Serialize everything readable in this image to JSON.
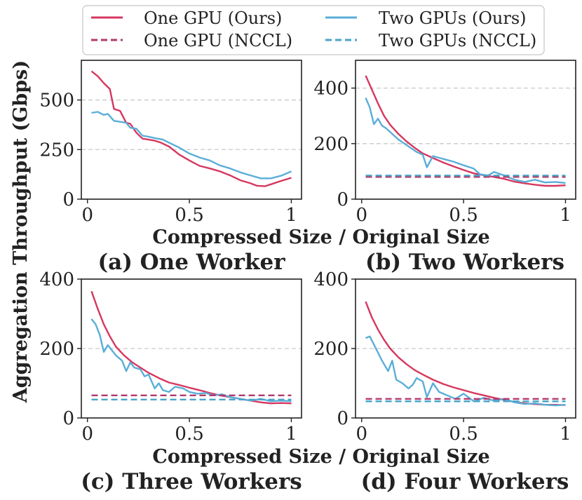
{
  "colors": {
    "ours_one": "#d6375f",
    "ours_two": "#5aaed8",
    "nccl_one": "#b03a6c",
    "nccl_two": "#4aa3c8",
    "grid": "#c9c9c9"
  },
  "legend": [
    {
      "label": "One GPU (Ours)",
      "style": "solid",
      "color_key": "ours_one"
    },
    {
      "label": "Two GPUs (Ours)",
      "style": "solid",
      "color_key": "ours_two"
    },
    {
      "label": "One GPU (NCCL)",
      "style": "dashed",
      "color_key": "nccl_one"
    },
    {
      "label": "Two GPUs (NCCL)",
      "style": "dashed",
      "color_key": "nccl_two"
    }
  ],
  "ylabel": "Aggregation Throughput (Gbps)",
  "xlabel": "Compressed Size / Original Size",
  "chart_data": [
    {
      "type": "line",
      "title": "(a) One Worker",
      "xlim": [
        -0.03,
        1.05
      ],
      "ylim": [
        0,
        700
      ],
      "xticks": [
        0,
        0.5,
        1
      ],
      "xtick_labels": [
        "0",
        "0.5",
        "1"
      ],
      "yticks": [
        0,
        250,
        500
      ],
      "ytick_labels": [
        "0",
        "250",
        "500"
      ],
      "series": [
        {
          "name": "One GPU (Ours)",
          "x": [
            0.02,
            0.05,
            0.08,
            0.11,
            0.13,
            0.16,
            0.19,
            0.21,
            0.24,
            0.27,
            0.3,
            0.33,
            0.36,
            0.4,
            0.45,
            0.5,
            0.55,
            0.6,
            0.65,
            0.7,
            0.75,
            0.8,
            0.83,
            0.87,
            0.9,
            0.95,
            1.0
          ],
          "y": [
            645,
            620,
            585,
            555,
            455,
            445,
            385,
            380,
            335,
            305,
            300,
            295,
            285,
            265,
            225,
            195,
            168,
            155,
            140,
            120,
            95,
            80,
            68,
            65,
            75,
            92,
            108
          ]
        },
        {
          "name": "Two GPUs (Ours)",
          "x": [
            0.02,
            0.05,
            0.08,
            0.1,
            0.13,
            0.16,
            0.19,
            0.21,
            0.24,
            0.27,
            0.3,
            0.33,
            0.37,
            0.4,
            0.45,
            0.5,
            0.55,
            0.6,
            0.65,
            0.7,
            0.75,
            0.8,
            0.85,
            0.9,
            0.95,
            1.0
          ],
          "y": [
            435,
            440,
            425,
            430,
            395,
            390,
            385,
            360,
            355,
            320,
            315,
            308,
            300,
            285,
            260,
            230,
            210,
            195,
            170,
            155,
            135,
            120,
            105,
            105,
            118,
            140
          ]
        },
        {
          "name": "One GPU (NCCL)",
          "constant": true,
          "y": []
        },
        {
          "name": "Two GPUs (NCCL)",
          "constant": true,
          "y": []
        }
      ]
    },
    {
      "type": "line",
      "title": "(b) Two Workers",
      "xlim": [
        -0.03,
        1.05
      ],
      "ylim": [
        0,
        500
      ],
      "xticks": [
        0,
        0.5,
        1
      ],
      "xtick_labels": [
        "0",
        "0.5",
        "1"
      ],
      "yticks": [
        0,
        200,
        400
      ],
      "ytick_labels": [
        "0",
        "200",
        "400"
      ],
      "series": [
        {
          "name": "One GPU (Ours)",
          "x": [
            0.02,
            0.05,
            0.08,
            0.11,
            0.14,
            0.18,
            0.22,
            0.26,
            0.3,
            0.35,
            0.4,
            0.45,
            0.5,
            0.55,
            0.6,
            0.65,
            0.7,
            0.75,
            0.8,
            0.85,
            0.9,
            0.95,
            1.0
          ],
          "y": [
            445,
            395,
            345,
            300,
            268,
            235,
            208,
            185,
            165,
            148,
            132,
            118,
            105,
            93,
            86,
            80,
            73,
            63,
            57,
            52,
            48,
            48,
            50
          ]
        },
        {
          "name": "Two GPUs (Ours)",
          "x": [
            0.02,
            0.04,
            0.06,
            0.08,
            0.1,
            0.12,
            0.15,
            0.18,
            0.22,
            0.27,
            0.3,
            0.32,
            0.35,
            0.4,
            0.45,
            0.5,
            0.55,
            0.58,
            0.62,
            0.65,
            0.7,
            0.75,
            0.8,
            0.85,
            0.9,
            0.95,
            1.0
          ],
          "y": [
            365,
            330,
            270,
            290,
            265,
            255,
            235,
            215,
            195,
            170,
            160,
            115,
            155,
            145,
            135,
            122,
            110,
            90,
            85,
            98,
            85,
            70,
            62,
            70,
            60,
            62,
            58
          ]
        },
        {
          "name": "One GPU (NCCL)",
          "constant": true,
          "y": [
            80
          ]
        },
        {
          "name": "Two GPUs (NCCL)",
          "constant": true,
          "y": [
            85
          ]
        }
      ]
    },
    {
      "type": "line",
      "title": "(c) Three Workers",
      "xlim": [
        -0.03,
        1.05
      ],
      "ylim": [
        0,
        400
      ],
      "xticks": [
        0,
        0.5,
        1
      ],
      "xtick_labels": [
        "0",
        "0.5",
        "1"
      ],
      "yticks": [
        0,
        200,
        400
      ],
      "ytick_labels": [
        "0",
        "200",
        "400"
      ],
      "series": [
        {
          "name": "One GPU (Ours)",
          "x": [
            0.02,
            0.05,
            0.08,
            0.11,
            0.14,
            0.18,
            0.22,
            0.26,
            0.3,
            0.35,
            0.4,
            0.45,
            0.5,
            0.55,
            0.6,
            0.65,
            0.7,
            0.75,
            0.8,
            0.85,
            0.9,
            0.95,
            1.0
          ],
          "y": [
            365,
            315,
            270,
            235,
            205,
            180,
            160,
            145,
            130,
            115,
            102,
            95,
            87,
            80,
            72,
            65,
            60,
            55,
            50,
            45,
            42,
            43,
            42
          ]
        },
        {
          "name": "Two GPUs (Ours)",
          "x": [
            0.02,
            0.04,
            0.06,
            0.08,
            0.1,
            0.12,
            0.14,
            0.17,
            0.19,
            0.21,
            0.23,
            0.26,
            0.28,
            0.3,
            0.33,
            0.35,
            0.37,
            0.4,
            0.43,
            0.47,
            0.5,
            0.54,
            0.58,
            0.62,
            0.66,
            0.7,
            0.75,
            0.8,
            0.85,
            0.9,
            0.95,
            1.0
          ],
          "y": [
            285,
            270,
            240,
            190,
            210,
            195,
            180,
            165,
            135,
            160,
            145,
            140,
            120,
            125,
            85,
            100,
            80,
            75,
            90,
            85,
            75,
            70,
            72,
            65,
            68,
            60,
            55,
            50,
            55,
            48,
            50,
            48
          ]
        },
        {
          "name": "One GPU (NCCL)",
          "constant": true,
          "y": [
            65
          ]
        },
        {
          "name": "Two GPUs (NCCL)",
          "constant": true,
          "y": [
            53
          ]
        }
      ]
    },
    {
      "type": "line",
      "title": "(d) Four Workers",
      "xlim": [
        -0.03,
        1.05
      ],
      "ylim": [
        0,
        400
      ],
      "xticks": [
        0,
        0.5,
        1
      ],
      "xtick_labels": [
        "0",
        "0.5",
        "1"
      ],
      "yticks": [
        0,
        200,
        400
      ],
      "ytick_labels": [
        "0",
        "200",
        "400"
      ],
      "series": [
        {
          "name": "One GPU (Ours)",
          "x": [
            0.02,
            0.05,
            0.08,
            0.11,
            0.14,
            0.18,
            0.22,
            0.26,
            0.3,
            0.35,
            0.4,
            0.45,
            0.5,
            0.55,
            0.6,
            0.65,
            0.7,
            0.75,
            0.8,
            0.85,
            0.9,
            0.95,
            1.0
          ],
          "y": [
            335,
            290,
            255,
            225,
            200,
            175,
            155,
            138,
            125,
            110,
            98,
            88,
            80,
            72,
            65,
            58,
            52,
            46,
            42,
            40,
            38,
            38,
            37
          ]
        },
        {
          "name": "Two GPUs (Ours)",
          "x": [
            0.02,
            0.04,
            0.07,
            0.1,
            0.13,
            0.15,
            0.17,
            0.2,
            0.23,
            0.25,
            0.27,
            0.3,
            0.32,
            0.35,
            0.38,
            0.42,
            0.46,
            0.5,
            0.55,
            0.6,
            0.65,
            0.7,
            0.75,
            0.8,
            0.85,
            0.9,
            0.95,
            1.0
          ],
          "y": [
            230,
            235,
            200,
            165,
            135,
            165,
            110,
            100,
            85,
            95,
            115,
            105,
            60,
            100,
            75,
            65,
            55,
            70,
            48,
            58,
            50,
            55,
            45,
            40,
            42,
            38,
            36,
            38
          ]
        },
        {
          "name": "One GPU (NCCL)",
          "constant": true,
          "y": [
            55
          ]
        },
        {
          "name": "Two GPUs (NCCL)",
          "constant": true,
          "y": [
            48
          ]
        }
      ]
    }
  ]
}
